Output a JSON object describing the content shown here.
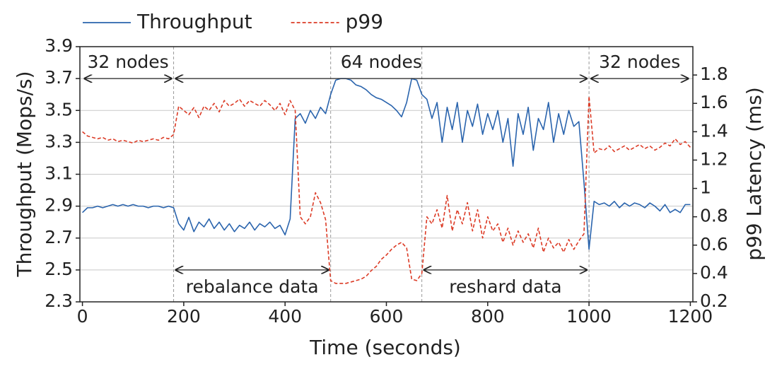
{
  "chart_data": {
    "type": "line",
    "x_label": "Time (seconds)",
    "y_label": "Throughput (Mops/s)",
    "y2_label": "p99 Latency (ms)",
    "xlim": [
      -5,
      1205
    ],
    "xticks": [
      0,
      200,
      400,
      600,
      800,
      1000,
      1200
    ],
    "ylim": [
      2.3,
      3.9
    ],
    "yticks": [
      2.3,
      2.5,
      2.7,
      2.9,
      3.1,
      3.3,
      3.5,
      3.7,
      3.9
    ],
    "y2lim": [
      0.2,
      2.0
    ],
    "y2ticks": [
      0.2,
      0.4,
      0.6,
      0.8,
      1.0,
      1.2,
      1.4,
      1.6,
      1.8
    ],
    "grid": true,
    "legend": "top",
    "x": [
      0,
      10,
      20,
      30,
      40,
      50,
      60,
      70,
      80,
      90,
      100,
      110,
      120,
      130,
      140,
      150,
      160,
      170,
      180,
      190,
      200,
      210,
      220,
      230,
      240,
      250,
      260,
      270,
      280,
      290,
      300,
      310,
      320,
      330,
      340,
      350,
      360,
      370,
      380,
      390,
      400,
      410,
      420,
      430,
      440,
      450,
      460,
      470,
      480,
      490,
      500,
      510,
      520,
      530,
      540,
      550,
      560,
      570,
      580,
      590,
      600,
      610,
      620,
      630,
      640,
      650,
      660,
      670,
      680,
      690,
      700,
      710,
      720,
      730,
      740,
      750,
      760,
      770,
      780,
      790,
      800,
      810,
      820,
      830,
      840,
      850,
      860,
      870,
      880,
      890,
      900,
      910,
      920,
      930,
      940,
      950,
      960,
      970,
      980,
      990,
      1000,
      1010,
      1020,
      1030,
      1040,
      1050,
      1060,
      1070,
      1080,
      1090,
      1100,
      1110,
      1120,
      1130,
      1140,
      1150,
      1160,
      1170,
      1180,
      1190,
      1200
    ],
    "series": [
      {
        "name": "Throughput",
        "color": "#2a64ad",
        "dash": "solid",
        "axis": "y",
        "values": [
          2.86,
          2.89,
          2.89,
          2.9,
          2.89,
          2.9,
          2.91,
          2.9,
          2.91,
          2.9,
          2.91,
          2.9,
          2.9,
          2.89,
          2.9,
          2.9,
          2.89,
          2.9,
          2.89,
          2.79,
          2.75,
          2.83,
          2.74,
          2.8,
          2.77,
          2.82,
          2.76,
          2.8,
          2.75,
          2.79,
          2.74,
          2.78,
          2.76,
          2.8,
          2.75,
          2.79,
          2.77,
          2.8,
          2.76,
          2.78,
          2.72,
          2.82,
          3.45,
          3.48,
          3.42,
          3.5,
          3.45,
          3.52,
          3.48,
          3.6,
          3.69,
          3.7,
          3.7,
          3.69,
          3.66,
          3.65,
          3.63,
          3.6,
          3.58,
          3.57,
          3.55,
          3.53,
          3.5,
          3.46,
          3.55,
          3.7,
          3.69,
          3.6,
          3.57,
          3.45,
          3.55,
          3.3,
          3.52,
          3.38,
          3.55,
          3.3,
          3.5,
          3.4,
          3.54,
          3.35,
          3.48,
          3.38,
          3.5,
          3.3,
          3.45,
          3.15,
          3.48,
          3.35,
          3.52,
          3.25,
          3.45,
          3.38,
          3.55,
          3.3,
          3.48,
          3.35,
          3.5,
          3.4,
          3.43,
          3.05,
          2.63,
          2.93,
          2.91,
          2.92,
          2.9,
          2.93,
          2.89,
          2.92,
          2.9,
          2.92,
          2.91,
          2.89,
          2.92,
          2.9,
          2.87,
          2.91,
          2.86,
          2.88,
          2.86,
          2.91,
          2.91
        ]
      },
      {
        "name": "p99",
        "color": "#dc3b26",
        "dash": "dashed",
        "axis": "y2",
        "values": [
          1.4,
          1.37,
          1.36,
          1.35,
          1.36,
          1.34,
          1.35,
          1.33,
          1.34,
          1.33,
          1.32,
          1.34,
          1.33,
          1.34,
          1.35,
          1.34,
          1.36,
          1.35,
          1.38,
          1.58,
          1.55,
          1.52,
          1.57,
          1.5,
          1.58,
          1.55,
          1.6,
          1.54,
          1.62,
          1.58,
          1.6,
          1.63,
          1.58,
          1.62,
          1.6,
          1.58,
          1.62,
          1.59,
          1.55,
          1.6,
          1.52,
          1.62,
          1.55,
          0.8,
          0.75,
          0.8,
          0.97,
          0.9,
          0.78,
          0.35,
          0.33,
          0.33,
          0.33,
          0.34,
          0.35,
          0.36,
          0.38,
          0.42,
          0.45,
          0.5,
          0.53,
          0.57,
          0.6,
          0.62,
          0.58,
          0.36,
          0.35,
          0.4,
          0.8,
          0.75,
          0.85,
          0.72,
          0.95,
          0.7,
          0.85,
          0.75,
          0.9,
          0.7,
          0.85,
          0.65,
          0.8,
          0.7,
          0.75,
          0.62,
          0.72,
          0.6,
          0.7,
          0.62,
          0.68,
          0.58,
          0.72,
          0.55,
          0.65,
          0.58,
          0.62,
          0.55,
          0.64,
          0.57,
          0.63,
          0.68,
          1.65,
          1.25,
          1.28,
          1.27,
          1.3,
          1.26,
          1.28,
          1.3,
          1.27,
          1.29,
          1.31,
          1.28,
          1.3,
          1.27,
          1.29,
          1.32,
          1.3,
          1.35,
          1.31,
          1.33,
          1.29
        ]
      }
    ],
    "vlines": [
      180,
      490,
      670,
      1000
    ],
    "annotations": [
      {
        "text": "32 nodes",
        "x": [
          0,
          180
        ],
        "y": 3.7,
        "side": "above"
      },
      {
        "text": "64 nodes",
        "x": [
          180,
          1000
        ],
        "y": 3.7,
        "side": "above"
      },
      {
        "text": "32 nodes",
        "x": [
          1000,
          1200
        ],
        "y": 3.7,
        "side": "above"
      },
      {
        "text": "rebalance data",
        "x": [
          180,
          490
        ],
        "y": 2.5,
        "side": "below"
      },
      {
        "text": "reshard data",
        "x": [
          670,
          1000
        ],
        "y": 2.5,
        "side": "below"
      }
    ]
  }
}
